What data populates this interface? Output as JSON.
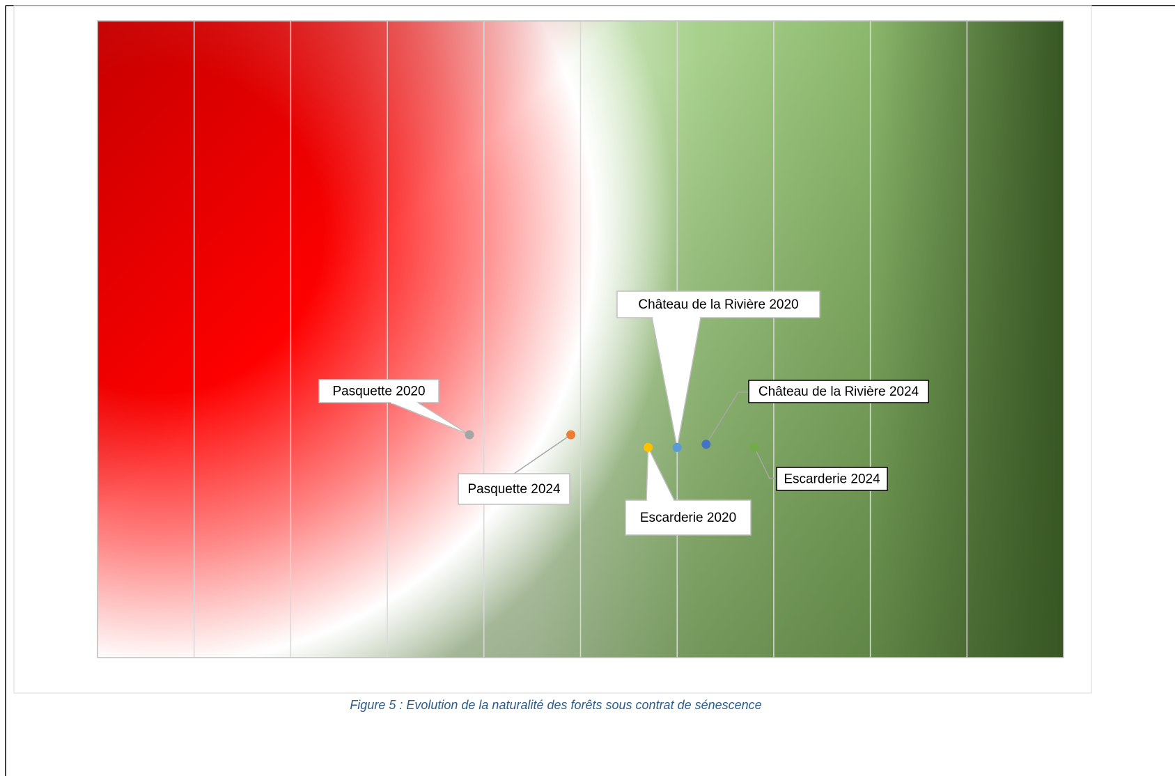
{
  "chart_data": {
    "type": "scatter",
    "caption": "Figure 5 : Evolution de la naturalité des forêts sous contrat de sénescence",
    "xlim": [
      0,
      10
    ],
    "xticks": [
      0,
      1,
      2,
      3,
      4,
      5,
      6,
      7,
      8,
      9,
      10
    ],
    "ylim": [
      0,
      10
    ],
    "grid": true,
    "series": [
      {
        "name": "Pasquette 2020",
        "color": "#a5a5a5",
        "x": [
          3.85
        ],
        "values": [
          3.5
        ]
      },
      {
        "name": "Pasquette 2024",
        "color": "#ed7d31",
        "x": [
          4.9
        ],
        "values": [
          3.5
        ]
      },
      {
        "name": "Escarderie 2020",
        "color": "#ffc000",
        "x": [
          5.7
        ],
        "values": [
          3.3
        ]
      },
      {
        "name": "Château de la Rivière 2020",
        "color": "#5b9bd5",
        "x": [
          6.0
        ],
        "values": [
          3.3
        ]
      },
      {
        "name": "Château de la Rivière 2024",
        "color": "#4472c4",
        "x": [
          6.3
        ],
        "values": [
          3.35
        ]
      },
      {
        "name": "Escarderie 2024",
        "color": "#70ad47",
        "x": [
          6.8
        ],
        "values": [
          3.3
        ]
      }
    ]
  }
}
